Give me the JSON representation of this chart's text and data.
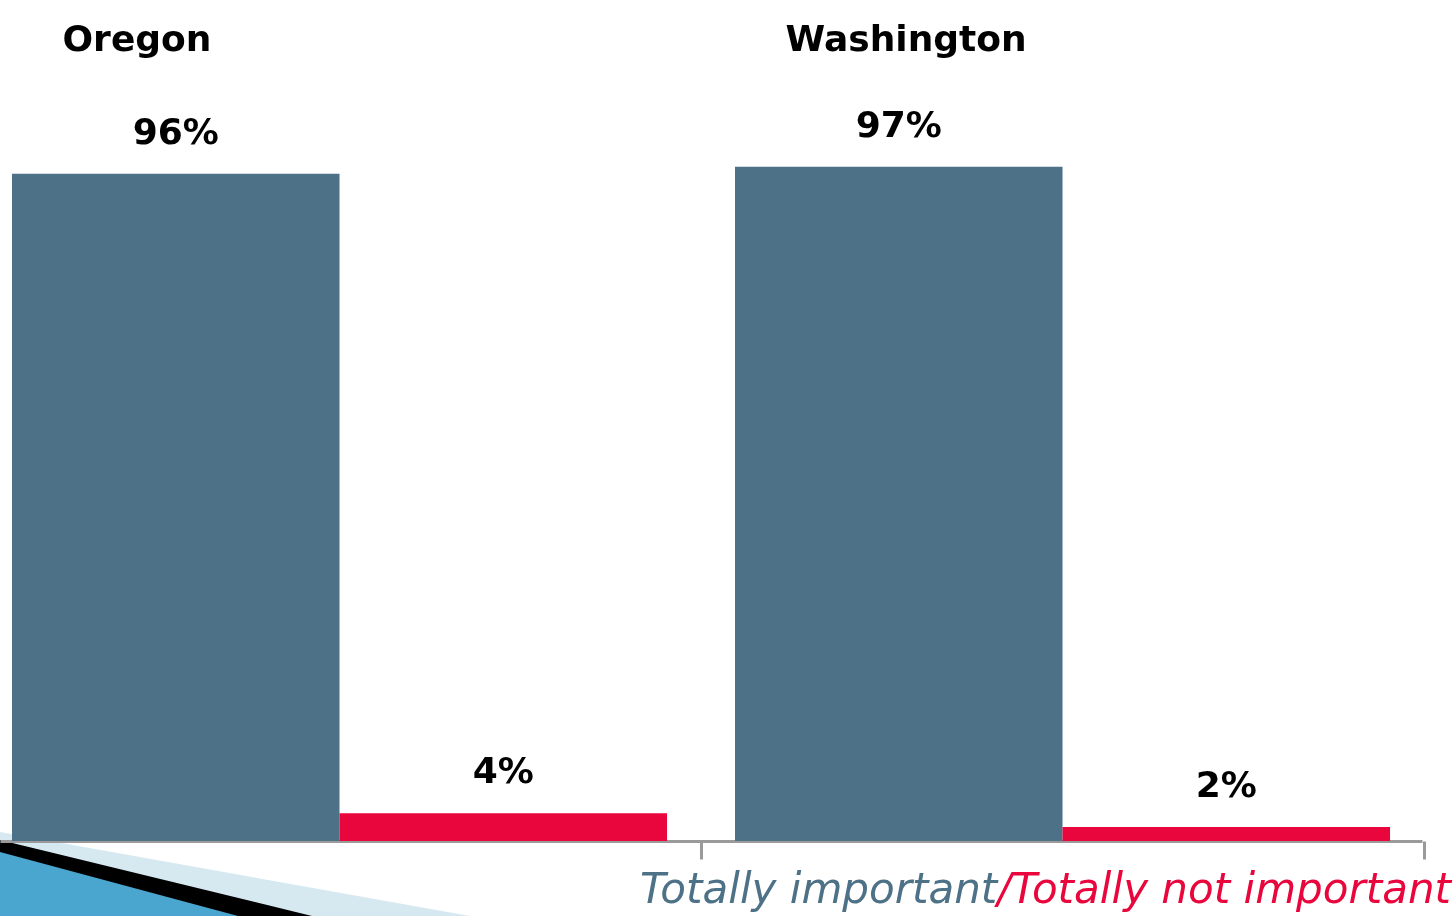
{
  "chart_data": {
    "type": "bar",
    "categories": [
      "Oregon",
      "Washington"
    ],
    "series": [
      {
        "name": "Totally important",
        "color": "#4d7186",
        "values": [
          96,
          97
        ],
        "value_labels": [
          "96%",
          "97%"
        ]
      },
      {
        "name": "Totally not important",
        "color": "#e8063c",
        "values": [
          4,
          2
        ],
        "value_labels": [
          "4%",
          "2%"
        ]
      }
    ],
    "tick_labels": "x",
    "legend": "bottom right",
    "annotations": [
      "/"
    ]
  }
}
